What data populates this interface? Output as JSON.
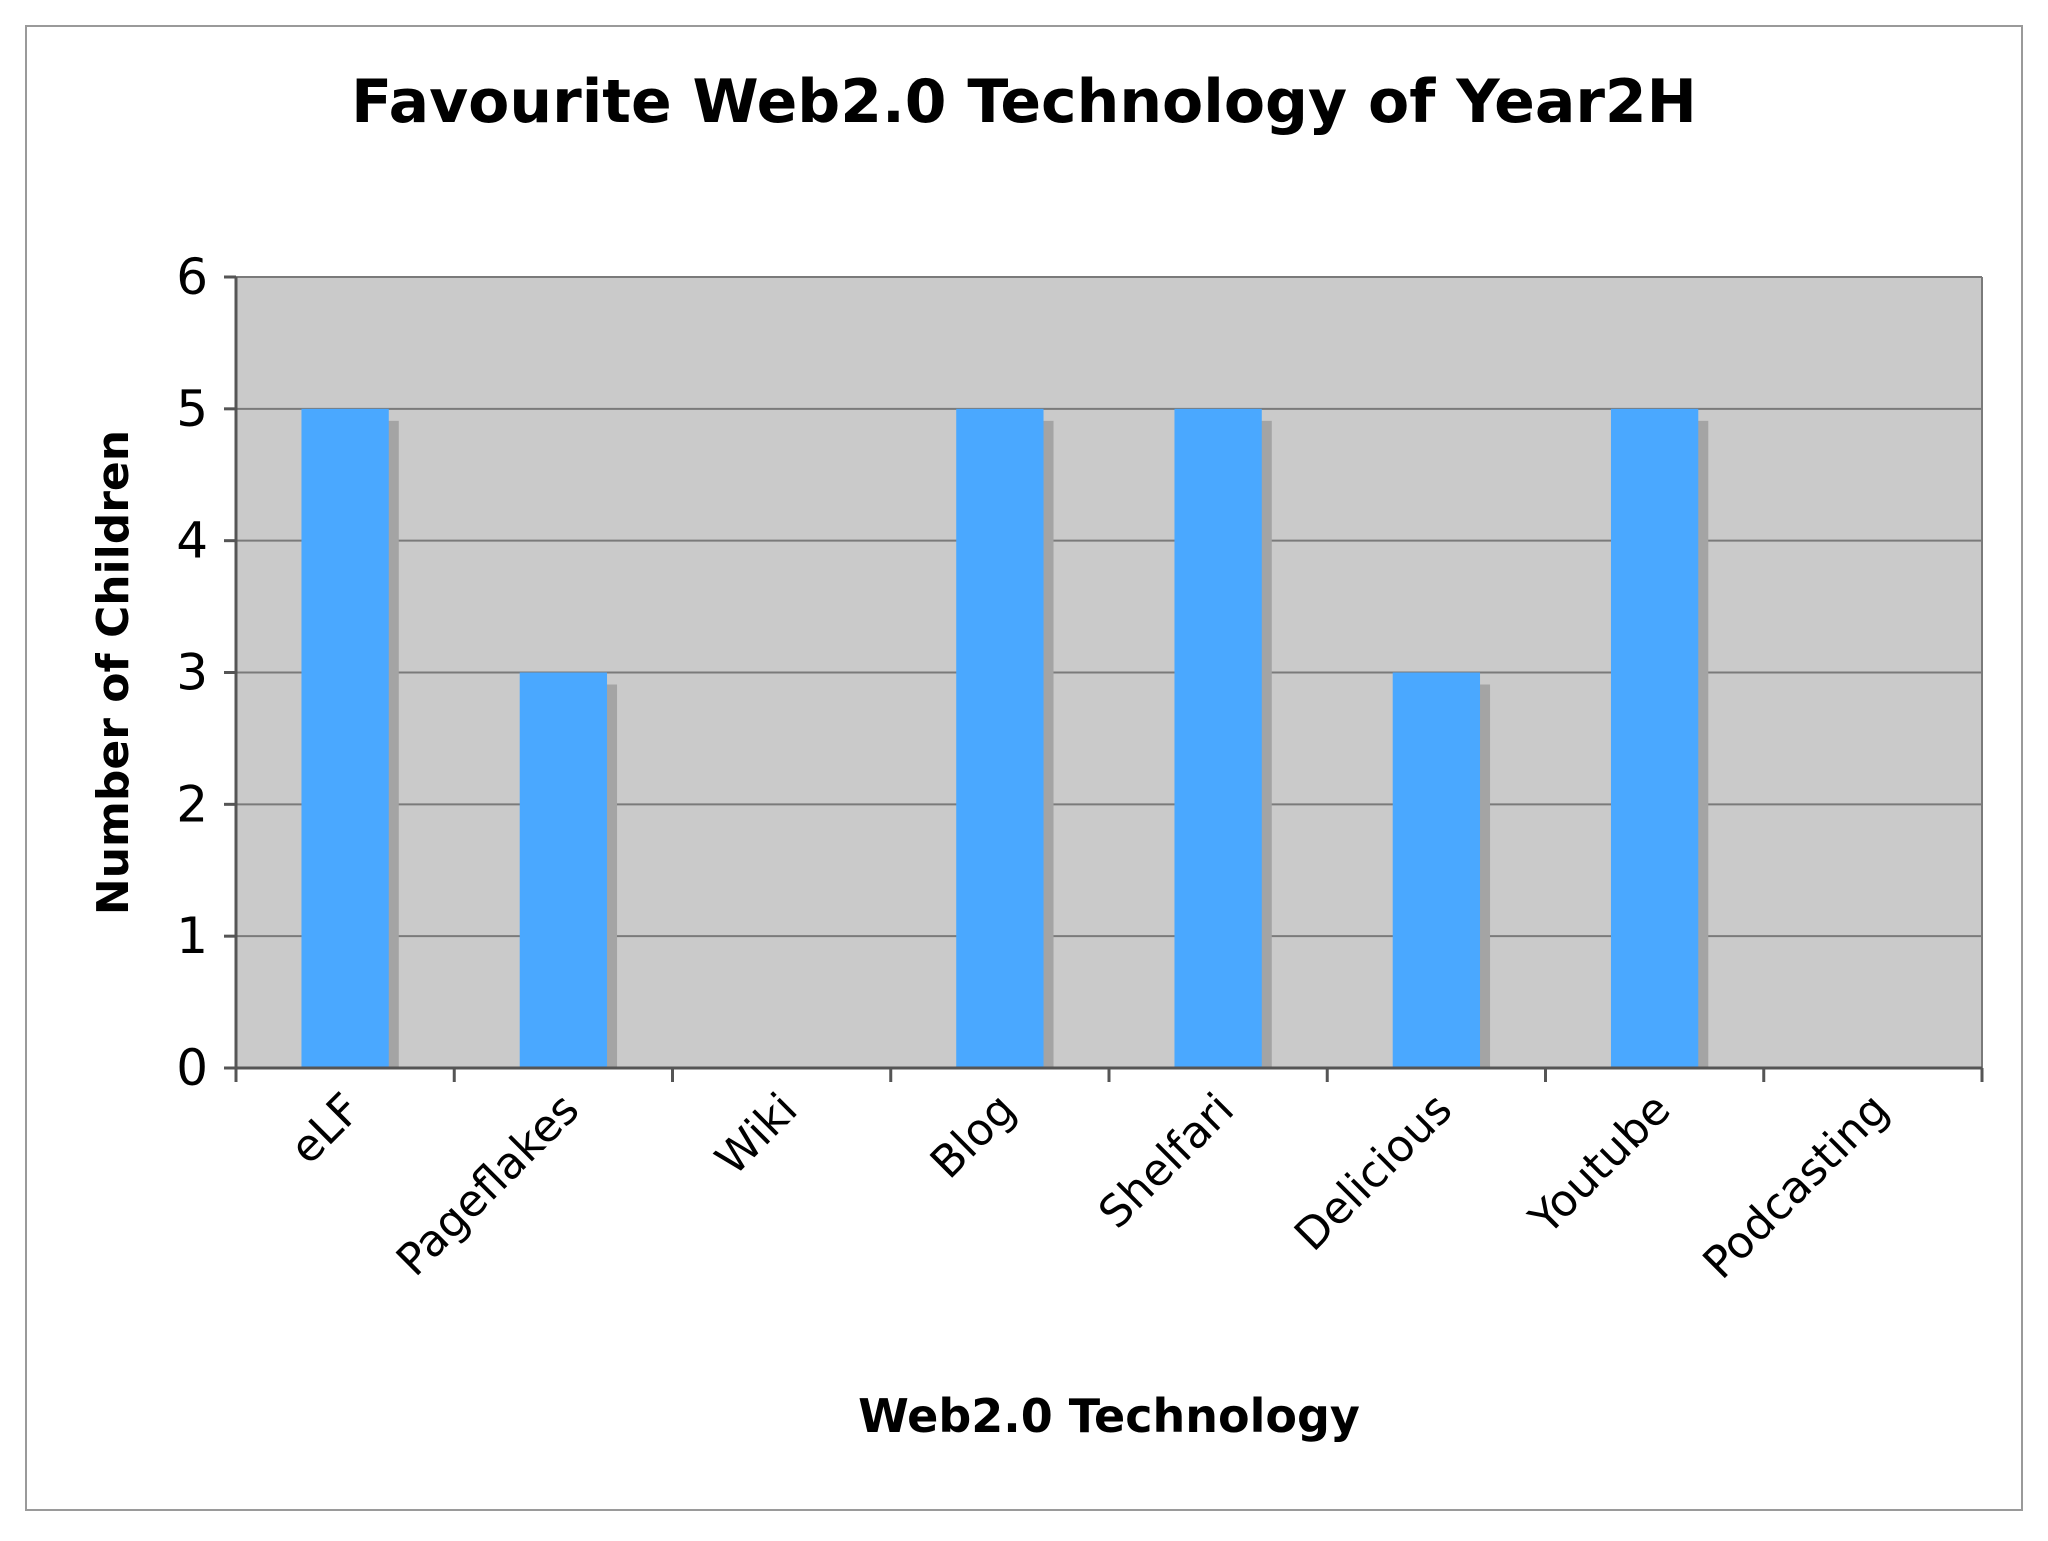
{
  "chart_data": {
    "type": "bar",
    "title": "Favourite Web2.0 Technology of Year2H",
    "xlabel": "Web2.0 Technology",
    "ylabel": "Number of Children",
    "categories": [
      "eLF",
      "Pageflakes",
      "Wiki",
      "Blog",
      "Shelfari",
      "Delicious",
      "Youtube",
      "Podcasting"
    ],
    "values": [
      5,
      3,
      0,
      5,
      5,
      3,
      5,
      0
    ],
    "ylim": [
      0,
      6
    ],
    "yticks": [
      "0",
      "1",
      "2",
      "3",
      "4",
      "5",
      "6"
    ],
    "grid": true,
    "legend": "none"
  },
  "colors": {
    "bar": "#4aa8ff",
    "bar_shadow": "#a4a4a4",
    "plot_background": "#cacaca",
    "gridline": "#7a7a7a",
    "axis": "#555555",
    "text": "#000000",
    "outer_border": "#9a9a9a"
  }
}
